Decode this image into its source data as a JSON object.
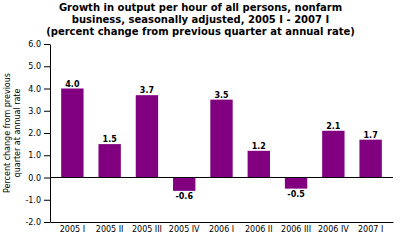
{
  "chart_data": {
    "type": "bar",
    "title": "Growth in output per hour of all persons, nonfarm\nbusiness, seasonally adjusted, 2005 I - 2007 I\n(percent change from previous quarter at annual rate)",
    "ylabel": "Percent change from previous\nquarter at annual rate",
    "categories": [
      "2005 I",
      "2005 II",
      "2005 III",
      "2005 IV",
      "2006 I",
      "2006 II",
      "2006 III",
      "2006 IV",
      "2007 I"
    ],
    "values": [
      4.0,
      1.5,
      3.7,
      -0.6,
      3.5,
      1.2,
      -0.5,
      2.1,
      1.7
    ],
    "value_labels": [
      "4.0",
      "1.5",
      "3.7",
      "-0.6",
      "3.5",
      "1.2",
      "-0.5",
      "2.1",
      "1.7"
    ],
    "color": "#800080",
    "ylim": [
      -2.0,
      6.0
    ],
    "yticks": [
      {
        "value": -2.0,
        "label": "-2.0"
      },
      {
        "value": -1.0,
        "label": "-1.0"
      },
      {
        "value": 0.0,
        "label": "0.0"
      },
      {
        "value": 1.0,
        "label": "1.0"
      },
      {
        "value": 2.0,
        "label": "2.0"
      },
      {
        "value": 3.0,
        "label": "3.0"
      },
      {
        "value": 4.0,
        "label": "4.0"
      },
      {
        "value": 5.0,
        "label": "5.0"
      },
      {
        "value": 6.0,
        "label": "6.0"
      }
    ],
    "grid": false,
    "data_labels": true
  }
}
